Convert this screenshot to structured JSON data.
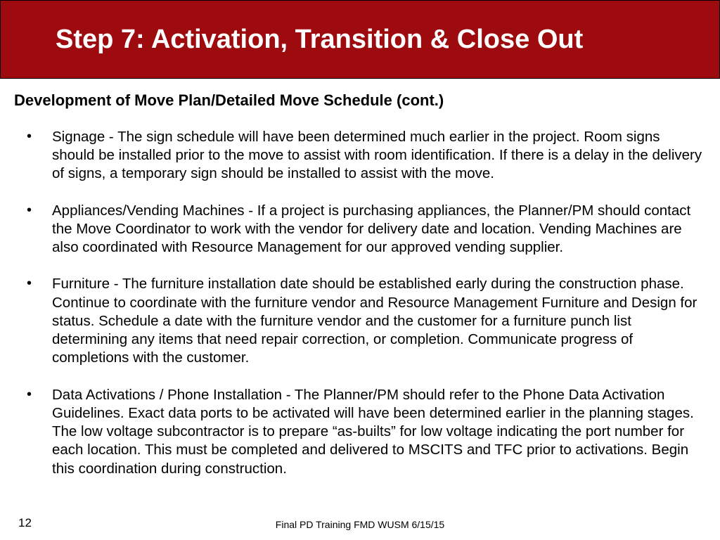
{
  "header": {
    "title": "Step 7: Activation, Transition & Close Out",
    "background_color": "#9e0b0f",
    "text_color": "#ffffff",
    "title_fontsize": 38
  },
  "subtitle": "Development of Move Plan/Detailed Move Schedule (cont.)",
  "bullets": [
    "Signage - The sign schedule will have been determined much earlier in the project. Room signs should be installed prior to the move to assist with room identification. If there is a delay in the delivery of signs, a temporary sign should be installed to assist with the move.",
    "Appliances/Vending Machines - If a project is purchasing appliances, the Planner/PM should contact the Move Coordinator to work with the vendor for delivery date and location. Vending Machines are also coordinated with Resource Management for our approved vending supplier.",
    "Furniture - The furniture installation date should be established early during the construction phase.  Continue to coordinate with the furniture vendor and Resource Management Furniture and Design for status.  Schedule a date with the furniture vendor and the customer for a furniture punch list determining any items that need repair correction, or completion.  Communicate progress of completions with the customer.",
    "Data Activations / Phone Installation - The Planner/PM should refer to the Phone Data Activation Guidelines. Exact data ports to be activated will have been determined earlier in the planning stages.  The low voltage subcontractor is to prepare “as-builts” for low voltage indicating the port number for each location.  This must be completed and delivered to MSCITS and TFC prior to activations.  Begin this coordination during construction."
  ],
  "page_number": "12",
  "footer": "Final PD Training FMD WUSM 6/15/15",
  "body_fontsize": 20.5,
  "body_text_color": "#000000",
  "background_color": "#ffffff"
}
